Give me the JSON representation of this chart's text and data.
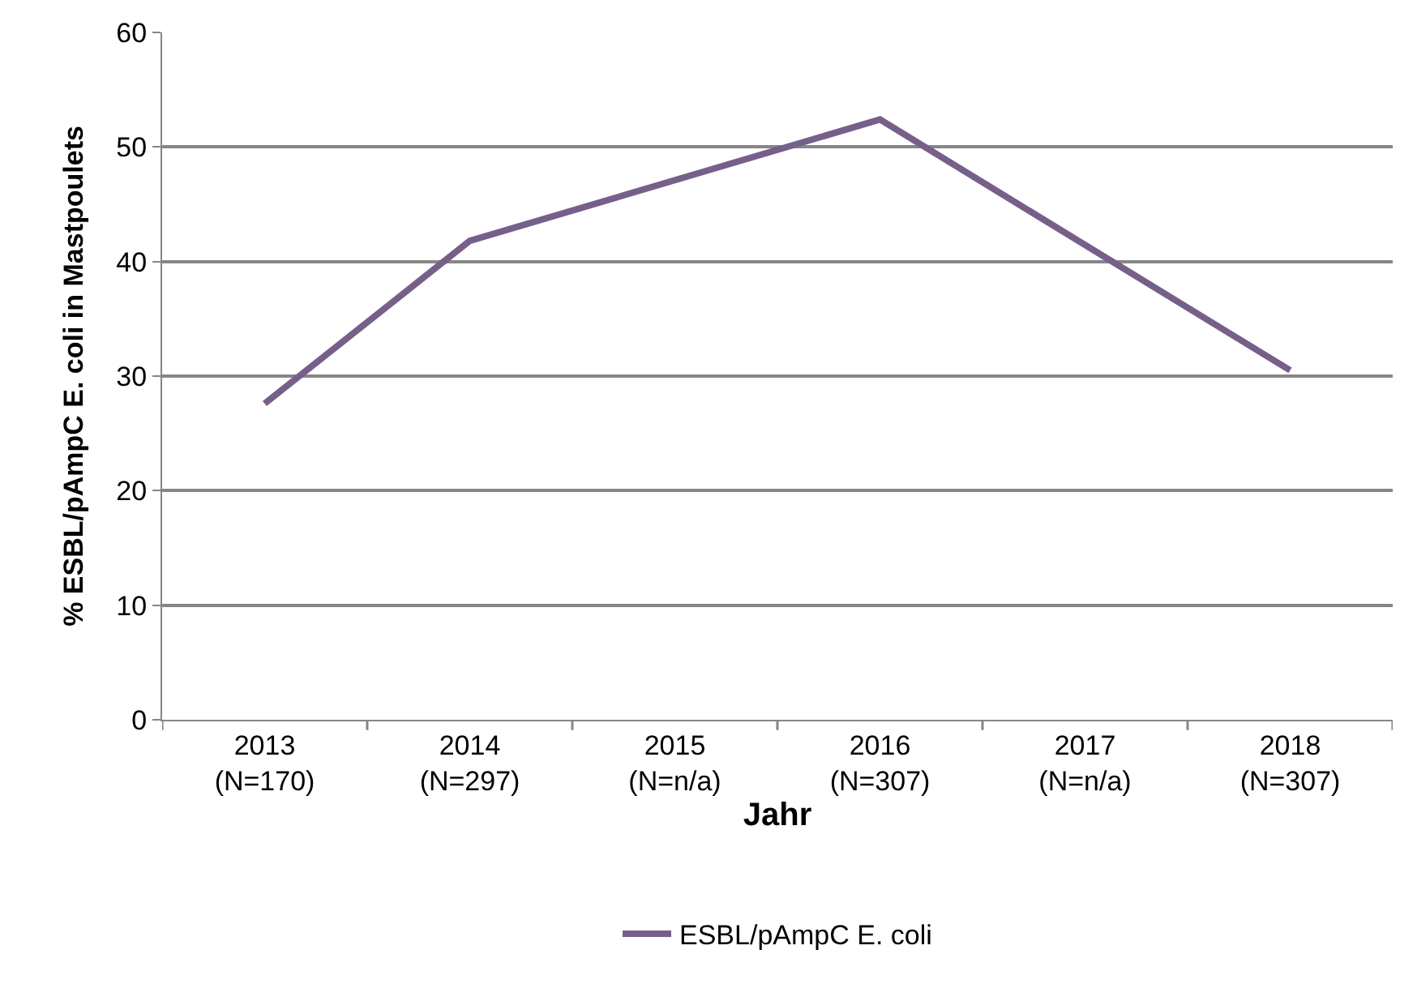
{
  "chart_data": {
    "type": "line",
    "xlabel": "Jahr",
    "ylabel": "% ESBL/pAmpC E. coli in Mastpoulets",
    "categories": [
      "2013\n(N=170)",
      "2014\n(N=297)",
      "2015\n(N=n/a)",
      "2016\n(N=307)",
      "2017\n(N=n/a)",
      "2018\n(N=307)"
    ],
    "series": [
      {
        "name": "ESBL/pAmpC E. coli",
        "color": "#76608a",
        "values": [
          27.6,
          41.8,
          null,
          52.4,
          null,
          30.5
        ]
      }
    ],
    "ylim": [
      0,
      60
    ],
    "yticks": [
      0,
      10,
      20,
      30,
      40,
      50,
      60
    ],
    "grid": "y",
    "legend": "bottom",
    "marker": "none",
    "line_style": "solid"
  }
}
